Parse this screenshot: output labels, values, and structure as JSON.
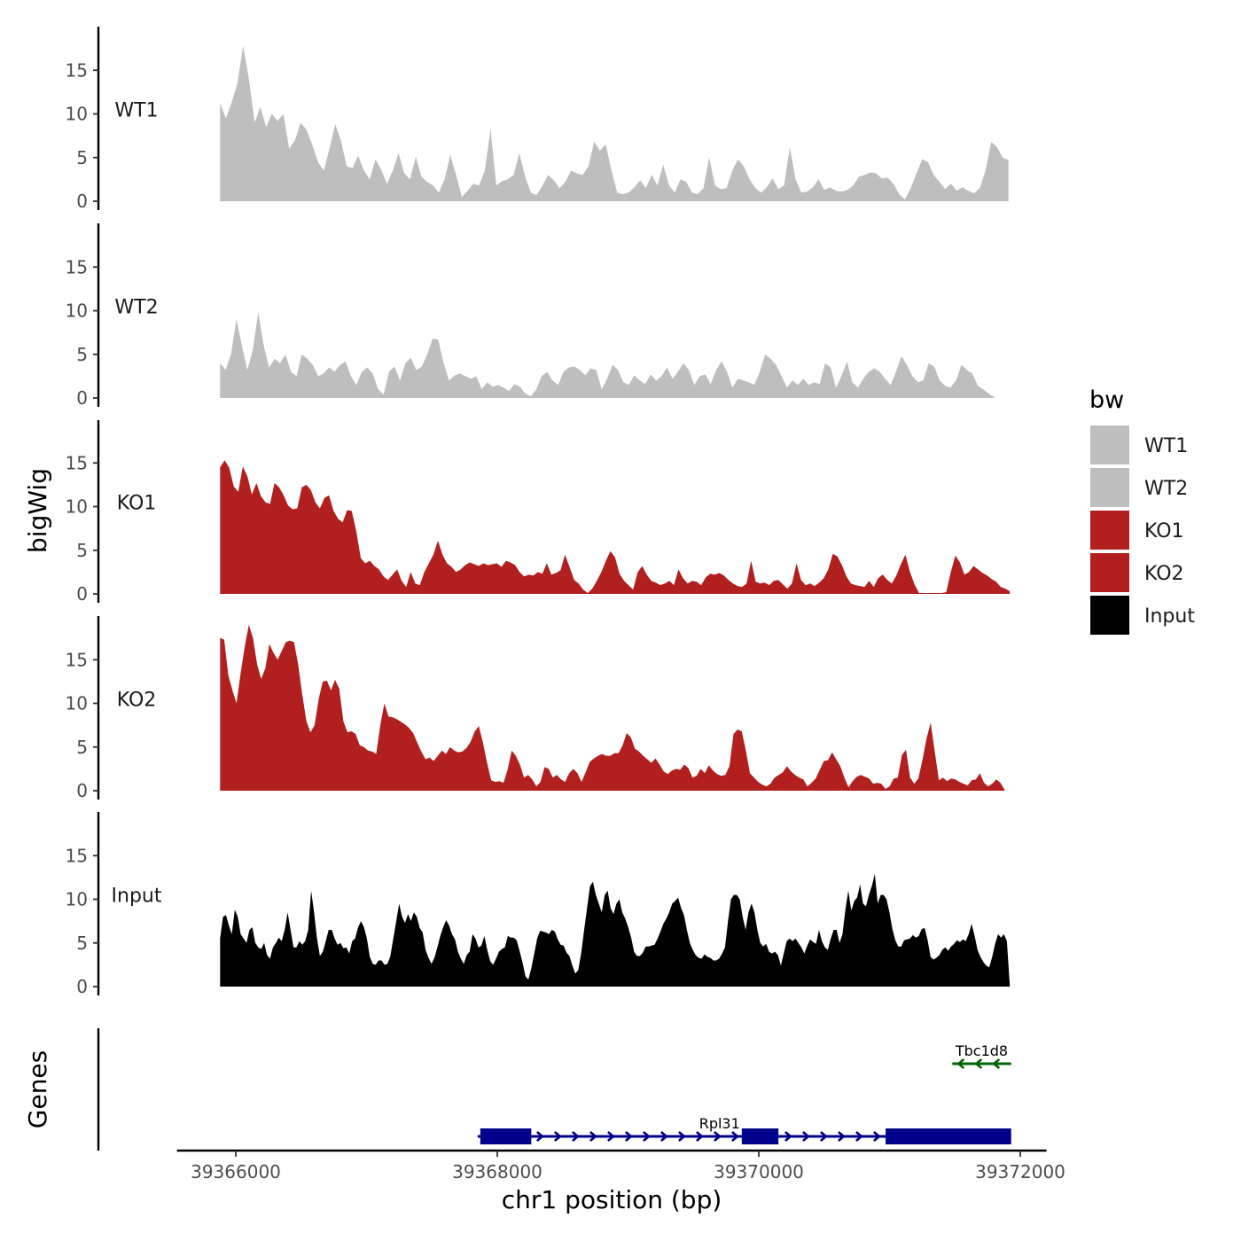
{
  "chart_data": {
    "type": "area",
    "y_axis_title": "bigWig",
    "genes_axis_title": "Genes",
    "x_axis_title": "chr1 position (bp)",
    "xlim": [
      39365550,
      39372200
    ],
    "x_ticks": [
      39366000,
      39368000,
      39370000,
      39372000
    ],
    "x_tick_labels": [
      "39366000",
      "39368000",
      "39370000",
      "39372000"
    ],
    "ylim": [
      0,
      20
    ],
    "y_ticks": [
      0,
      5,
      10,
      15
    ],
    "y_tick_labels": [
      "0",
      "5",
      "10",
      "15"
    ],
    "legend": {
      "title": "bw",
      "entries": [
        {
          "label": "WT1",
          "color": "#bebebe"
        },
        {
          "label": "WT2",
          "color": "#bebebe"
        },
        {
          "label": "KO1",
          "color": "#b21f1f"
        },
        {
          "label": "KO2",
          "color": "#b21f1f"
        },
        {
          "label": "Input",
          "color": "#000000"
        }
      ]
    },
    "series": [
      {
        "name": "WT1",
        "color": "#bebebe",
        "x_start": 39365880,
        "x_end": 39371910,
        "values": [
          11.2,
          9.5,
          11.3,
          13.5,
          17.8,
          14,
          9,
          10.8,
          8.5,
          10,
          9.2,
          10,
          6,
          7,
          9,
          8.2,
          6.5,
          4.5,
          3.5,
          6,
          8.8,
          7,
          4,
          3.8,
          5.2,
          3.5,
          2.5,
          4.8,
          3.6,
          2,
          3.5,
          5.5,
          3.2,
          2.5,
          5.1,
          2.8,
          2.2,
          1.8,
          1,
          2.5,
          5.3,
          3,
          0.5,
          1.2,
          2,
          1.8,
          3.5,
          8.2,
          1.8,
          2.3,
          2.5,
          3,
          5.5,
          2.8,
          1,
          0.7,
          1.8,
          3,
          2.4,
          1.5,
          2.2,
          3.5,
          3.2,
          3,
          4,
          6.8,
          5.8,
          6.5,
          3.5,
          1,
          0.8,
          1,
          1.6,
          2.4,
          1.5,
          3,
          1.8,
          4.2,
          1.8,
          1,
          2.5,
          2.2,
          1,
          0.8,
          1.5,
          5,
          1.8,
          1.4,
          1.5,
          3.5,
          4.8,
          4,
          2.5,
          1.5,
          1,
          1.6,
          2.6,
          1.4,
          1.8,
          6.2,
          2.5,
          1,
          1.1,
          1.6,
          2.5,
          1.3,
          1.6,
          1.2,
          1.1,
          1.3,
          1.8,
          2.8,
          3,
          3.3,
          3.2,
          2.6,
          2.7,
          2,
          0.8,
          0.2,
          1.5,
          3.2,
          4.8,
          4.5,
          3,
          2.2,
          1.4,
          2,
          1.2,
          1.6,
          1.2,
          0.9,
          1.5,
          3.5,
          6.8,
          6.2,
          5,
          4.7
        ]
      },
      {
        "name": "WT2",
        "color": "#bebebe",
        "x_start": 39365880,
        "x_end": 39371800,
        "values": [
          4,
          3.2,
          5,
          9,
          6,
          3.2,
          5.5,
          9.8,
          6,
          3.5,
          4.5,
          4,
          5,
          3,
          2.5,
          5,
          4.5,
          3.8,
          2.5,
          2.8,
          3.5,
          3,
          3.8,
          4.2,
          2.5,
          1.5,
          3,
          3.5,
          2.8,
          1,
          0.4,
          3,
          3.6,
          2,
          4,
          4.6,
          3.2,
          3.6,
          5,
          6.8,
          6.7,
          4,
          2,
          2.6,
          2.8,
          2.5,
          2.2,
          2.5,
          1,
          1.8,
          1.3,
          1.5,
          1.2,
          0.8,
          1.6,
          1.3,
          0.5,
          0.2,
          1,
          2.5,
          3,
          2,
          1.5,
          3,
          3.5,
          3.6,
          3.2,
          2.6,
          3.4,
          3.2,
          1,
          2.2,
          3.8,
          3.2,
          1.8,
          1.5,
          2.6,
          2,
          1.6,
          2.7,
          2,
          2.5,
          3.5,
          2.2,
          3,
          4,
          3.2,
          1.5,
          2.5,
          2.7,
          1.6,
          3.2,
          4.2,
          3,
          1.2,
          2.2,
          2,
          1.8,
          1.5,
          3,
          5,
          4.5,
          3.8,
          2.5,
          1.2,
          2,
          1.5,
          2.2,
          1.5,
          1.8,
          1.6,
          4,
          3.5,
          1.2,
          2.5,
          4.2,
          1.8,
          1.2,
          2.2,
          3,
          3.4,
          3,
          2.2,
          1.5,
          3,
          4.8,
          3.8,
          2.5,
          1.8,
          2,
          4,
          3.6,
          2,
          1.4,
          1.2,
          2,
          3.8,
          3.2,
          2.8,
          1.4,
          1,
          0.5,
          0.1
        ]
      },
      {
        "name": "KO1",
        "color": "#b21f1f",
        "x_start": 39365880,
        "x_end": 39371920,
        "values": [
          14.5,
          15.3,
          14.5,
          12.3,
          11.7,
          14.6,
          13.5,
          11.4,
          12.7,
          11.2,
          10.5,
          10.3,
          12.7,
          12.2,
          11.3,
          10.1,
          9.7,
          9.8,
          12.2,
          12.5,
          11.9,
          10.5,
          9.8,
          11,
          11.3,
          9.5,
          8.6,
          8.2,
          9.6,
          9.5,
          7.2,
          4.1,
          3.5,
          3.8,
          3.2,
          2.8,
          2,
          1.6,
          2.2,
          2.8,
          1.5,
          0.8,
          2.5,
          1.2,
          1,
          2.5,
          3.5,
          4.5,
          6.1,
          4.5,
          3.5,
          3.1,
          2.5,
          2.8,
          3.3,
          3.6,
          3.4,
          3.2,
          3.5,
          3.3,
          3.4,
          3.5,
          3.1,
          3.8,
          3.6,
          3.3,
          2.5,
          2,
          2.2,
          2.1,
          2.5,
          2.3,
          3.5,
          2.2,
          2.4,
          2.7,
          4.5,
          3.1,
          1.6,
          1.2,
          0.5,
          0.1,
          0.6,
          1.5,
          2.5,
          3.8,
          4.9,
          4.2,
          2.3,
          1.5,
          1,
          0.5,
          2.5,
          3.2,
          2.2,
          1.5,
          1.3,
          1,
          1.2,
          1.5,
          1,
          2.8,
          1.8,
          1.2,
          1.5,
          1.4,
          1,
          1.9,
          2.3,
          2.2,
          2.4,
          2.1,
          1.6,
          1.2,
          0.9,
          0.8,
          1.2,
          3.8,
          1.4,
          1.2,
          1.3,
          1,
          1.5,
          1.6,
          1.1,
          0.6,
          1.2,
          3.5,
          1.6,
          1,
          1.2,
          0.9,
          1.3,
          1.8,
          2.8,
          4.6,
          4.3,
          3.3,
          2,
          1.2,
          1,
          0.9,
          0.8,
          1.5,
          0.8,
          1.8,
          2.2,
          1.6,
          1.2,
          2.1,
          3.4,
          4.5,
          2.5,
          1.1,
          0.1,
          0.1,
          0.1,
          0.1,
          0.1,
          0.1,
          0.2,
          2.5,
          4.4,
          3.6,
          2.2,
          2.5,
          3.2,
          2.8,
          2.4,
          2.1,
          1.7,
          1.4,
          0.8,
          0.6,
          0.3
        ]
      },
      {
        "name": "KO2",
        "color": "#b21f1f",
        "x_start": 39365880,
        "x_end": 39371880,
        "values": [
          17.5,
          17.3,
          13.2,
          11.5,
          10,
          13.5,
          16.5,
          19,
          17.5,
          14.5,
          12.8,
          14,
          16.8,
          15.8,
          15,
          16,
          17,
          17.2,
          17,
          14.5,
          11,
          8,
          6.7,
          7.5,
          10.5,
          12.5,
          12.6,
          11.5,
          12.7,
          11.7,
          8,
          6.7,
          6.8,
          6.5,
          5.2,
          5,
          4.6,
          4.5,
          4.2,
          7.5,
          10,
          8.5,
          8.4,
          8.2,
          7.9,
          7.6,
          7.2,
          6.6,
          5.5,
          4.5,
          3.6,
          3.8,
          3.4,
          4,
          4.6,
          4.2,
          5,
          4.6,
          4.4,
          4.5,
          4.9,
          5.6,
          6.8,
          7.4,
          5.5,
          3.2,
          1.2,
          1,
          1.1,
          0.9,
          2.4,
          4.6,
          4,
          3,
          1.5,
          1.8,
          1.3,
          0.5,
          1,
          2.7,
          2.5,
          1.5,
          1.8,
          1.3,
          1,
          2,
          2.5,
          2,
          1,
          2.1,
          3.3,
          3.7,
          4,
          4.2,
          4,
          4,
          4.3,
          4.3,
          5.2,
          6.6,
          6.1,
          4.8,
          4.5,
          4,
          3.6,
          3.2,
          3.7,
          3,
          2.2,
          1.9,
          2.3,
          2.5,
          2.4,
          3,
          2.6,
          1.5,
          1.7,
          2.5,
          2,
          2.9,
          2.3,
          1.9,
          1.7,
          1.8,
          2.8,
          6.5,
          7,
          6.8,
          4.6,
          2,
          1.5,
          1,
          0.7,
          0.5,
          0.8,
          1.5,
          1.8,
          2.1,
          2.8,
          2.2,
          1.8,
          1.5,
          1.3,
          0.5,
          0.9,
          1.4,
          2.4,
          3.4,
          3.5,
          4.4,
          3.6,
          2.8,
          1.5,
          0.4,
          1.1,
          1.6,
          1.8,
          1.6,
          1.4,
          0.8,
          0.9,
          0.8,
          0.2,
          0.5,
          1.4,
          1.5,
          4.1,
          4.7,
          1.5,
          0.8,
          1.4,
          3.5,
          6,
          7.8,
          4.5,
          1.2,
          1.5,
          1.1,
          1.4,
          1.3,
          1,
          0.8,
          0.6,
          1.2,
          1.3,
          2,
          0.9,
          0.5,
          0.8,
          1.3,
          0.9,
          0.1
        ]
      },
      {
        "name": "Input",
        "color": "#000000",
        "x_start": 39365880,
        "x_end": 39371920,
        "values": [
          5.5,
          8,
          8.2,
          7,
          6,
          8.8,
          8,
          6,
          5.5,
          5,
          6.5,
          6.8,
          5,
          4.5,
          4.3,
          5,
          3.6,
          3.2,
          4.5,
          5,
          5.6,
          5.2,
          6.5,
          8.5,
          6.5,
          4.5,
          4.5,
          5.2,
          4.8,
          5.2,
          6.5,
          11,
          8.5,
          5.5,
          3.5,
          4,
          5.2,
          6.5,
          6.5,
          5.5,
          4.8,
          5,
          4.4,
          4.5,
          3.8,
          5.2,
          5.5,
          6.8,
          7.5,
          6.8,
          5.5,
          3.4,
          2.6,
          2.5,
          3,
          3,
          2.5,
          2.6,
          3.5,
          5.5,
          7.5,
          9.5,
          8,
          7.3,
          8.3,
          7.5,
          8.5,
          8,
          6.7,
          6.2,
          4.2,
          3.3,
          2.6,
          3.3,
          4.5,
          5.8,
          6.8,
          7.6,
          7,
          6,
          5.4,
          4,
          3.2,
          2.6,
          3.6,
          4,
          6,
          5.5,
          4.5,
          4.7,
          5.8,
          4.2,
          2.9,
          2.5,
          3.2,
          4,
          4.3,
          4.5,
          5.8,
          5.6,
          5.6,
          5.3,
          4.1,
          2.8,
          1.2,
          0.8,
          2.1,
          3.8,
          5.5,
          6.4,
          6.3,
          6.2,
          6,
          6.5,
          6.3,
          5.4,
          4.8,
          4.7,
          3.9,
          3.5,
          2.4,
          1.5,
          1.9,
          3.9,
          6.5,
          9,
          11.5,
          12,
          10.5,
          9.5,
          8.5,
          10.5,
          11,
          9,
          8.3,
          9.5,
          10,
          8.5,
          7.8,
          6.8,
          5.6,
          4,
          3.5,
          3.5,
          3.9,
          4.6,
          4.6,
          4.7,
          4.8,
          5.5,
          6.3,
          7.2,
          7.8,
          8.5,
          9.5,
          9.8,
          10.2,
          9,
          8.2,
          6.5,
          5,
          4.2,
          3.6,
          3.3,
          3.2,
          3.7,
          3.4,
          3.3,
          3,
          3,
          3.2,
          3.8,
          4.5,
          7.5,
          10,
          10.5,
          10.5,
          10,
          8,
          6.5,
          8.5,
          9.5,
          8.5,
          6.5,
          5,
          4.6,
          4.9,
          4,
          3.8,
          4,
          3.6,
          2.4,
          3.8,
          5.2,
          5.5,
          5.2,
          5.5,
          5,
          4.5,
          3.8,
          4.7,
          5.4,
          5.1,
          4.9,
          6.5,
          5.2,
          4.5,
          4.2,
          5.5,
          6.5,
          6.5,
          5,
          6,
          8.8,
          11,
          8.7,
          9.8,
          10.2,
          11.7,
          9.5,
          9.2,
          10.5,
          11.5,
          12.9,
          9.5,
          10.5,
          10.5,
          10,
          8.5,
          6.6,
          5.3,
          4.6,
          4.6,
          5.3,
          5.4,
          5.5,
          5.9,
          5.6,
          5.8,
          6.6,
          6.7,
          5.3,
          3.4,
          3.1,
          3.3,
          3.6,
          4.2,
          4.5,
          4.1,
          4.6,
          4.9,
          5.3,
          5.1,
          5.4,
          5.2,
          6,
          7.2,
          5.8,
          4.2,
          3.4,
          2.8,
          2.4,
          2.2,
          3.4,
          4.9,
          6,
          5.6,
          6,
          5.2,
          0.1
        ]
      }
    ],
    "genes": [
      {
        "name": "Rpl31",
        "strand": "+",
        "color": "#00008b",
        "start": 39367850,
        "end": 39371930,
        "exons": [
          [
            39367870,
            39368260
          ],
          [
            39369870,
            39370150
          ],
          [
            39370970,
            39371930
          ]
        ]
      },
      {
        "name": "Tbc1d8",
        "strand": "-",
        "color": "#006400",
        "start": 39371480,
        "end": 39371930,
        "exons": []
      }
    ]
  }
}
